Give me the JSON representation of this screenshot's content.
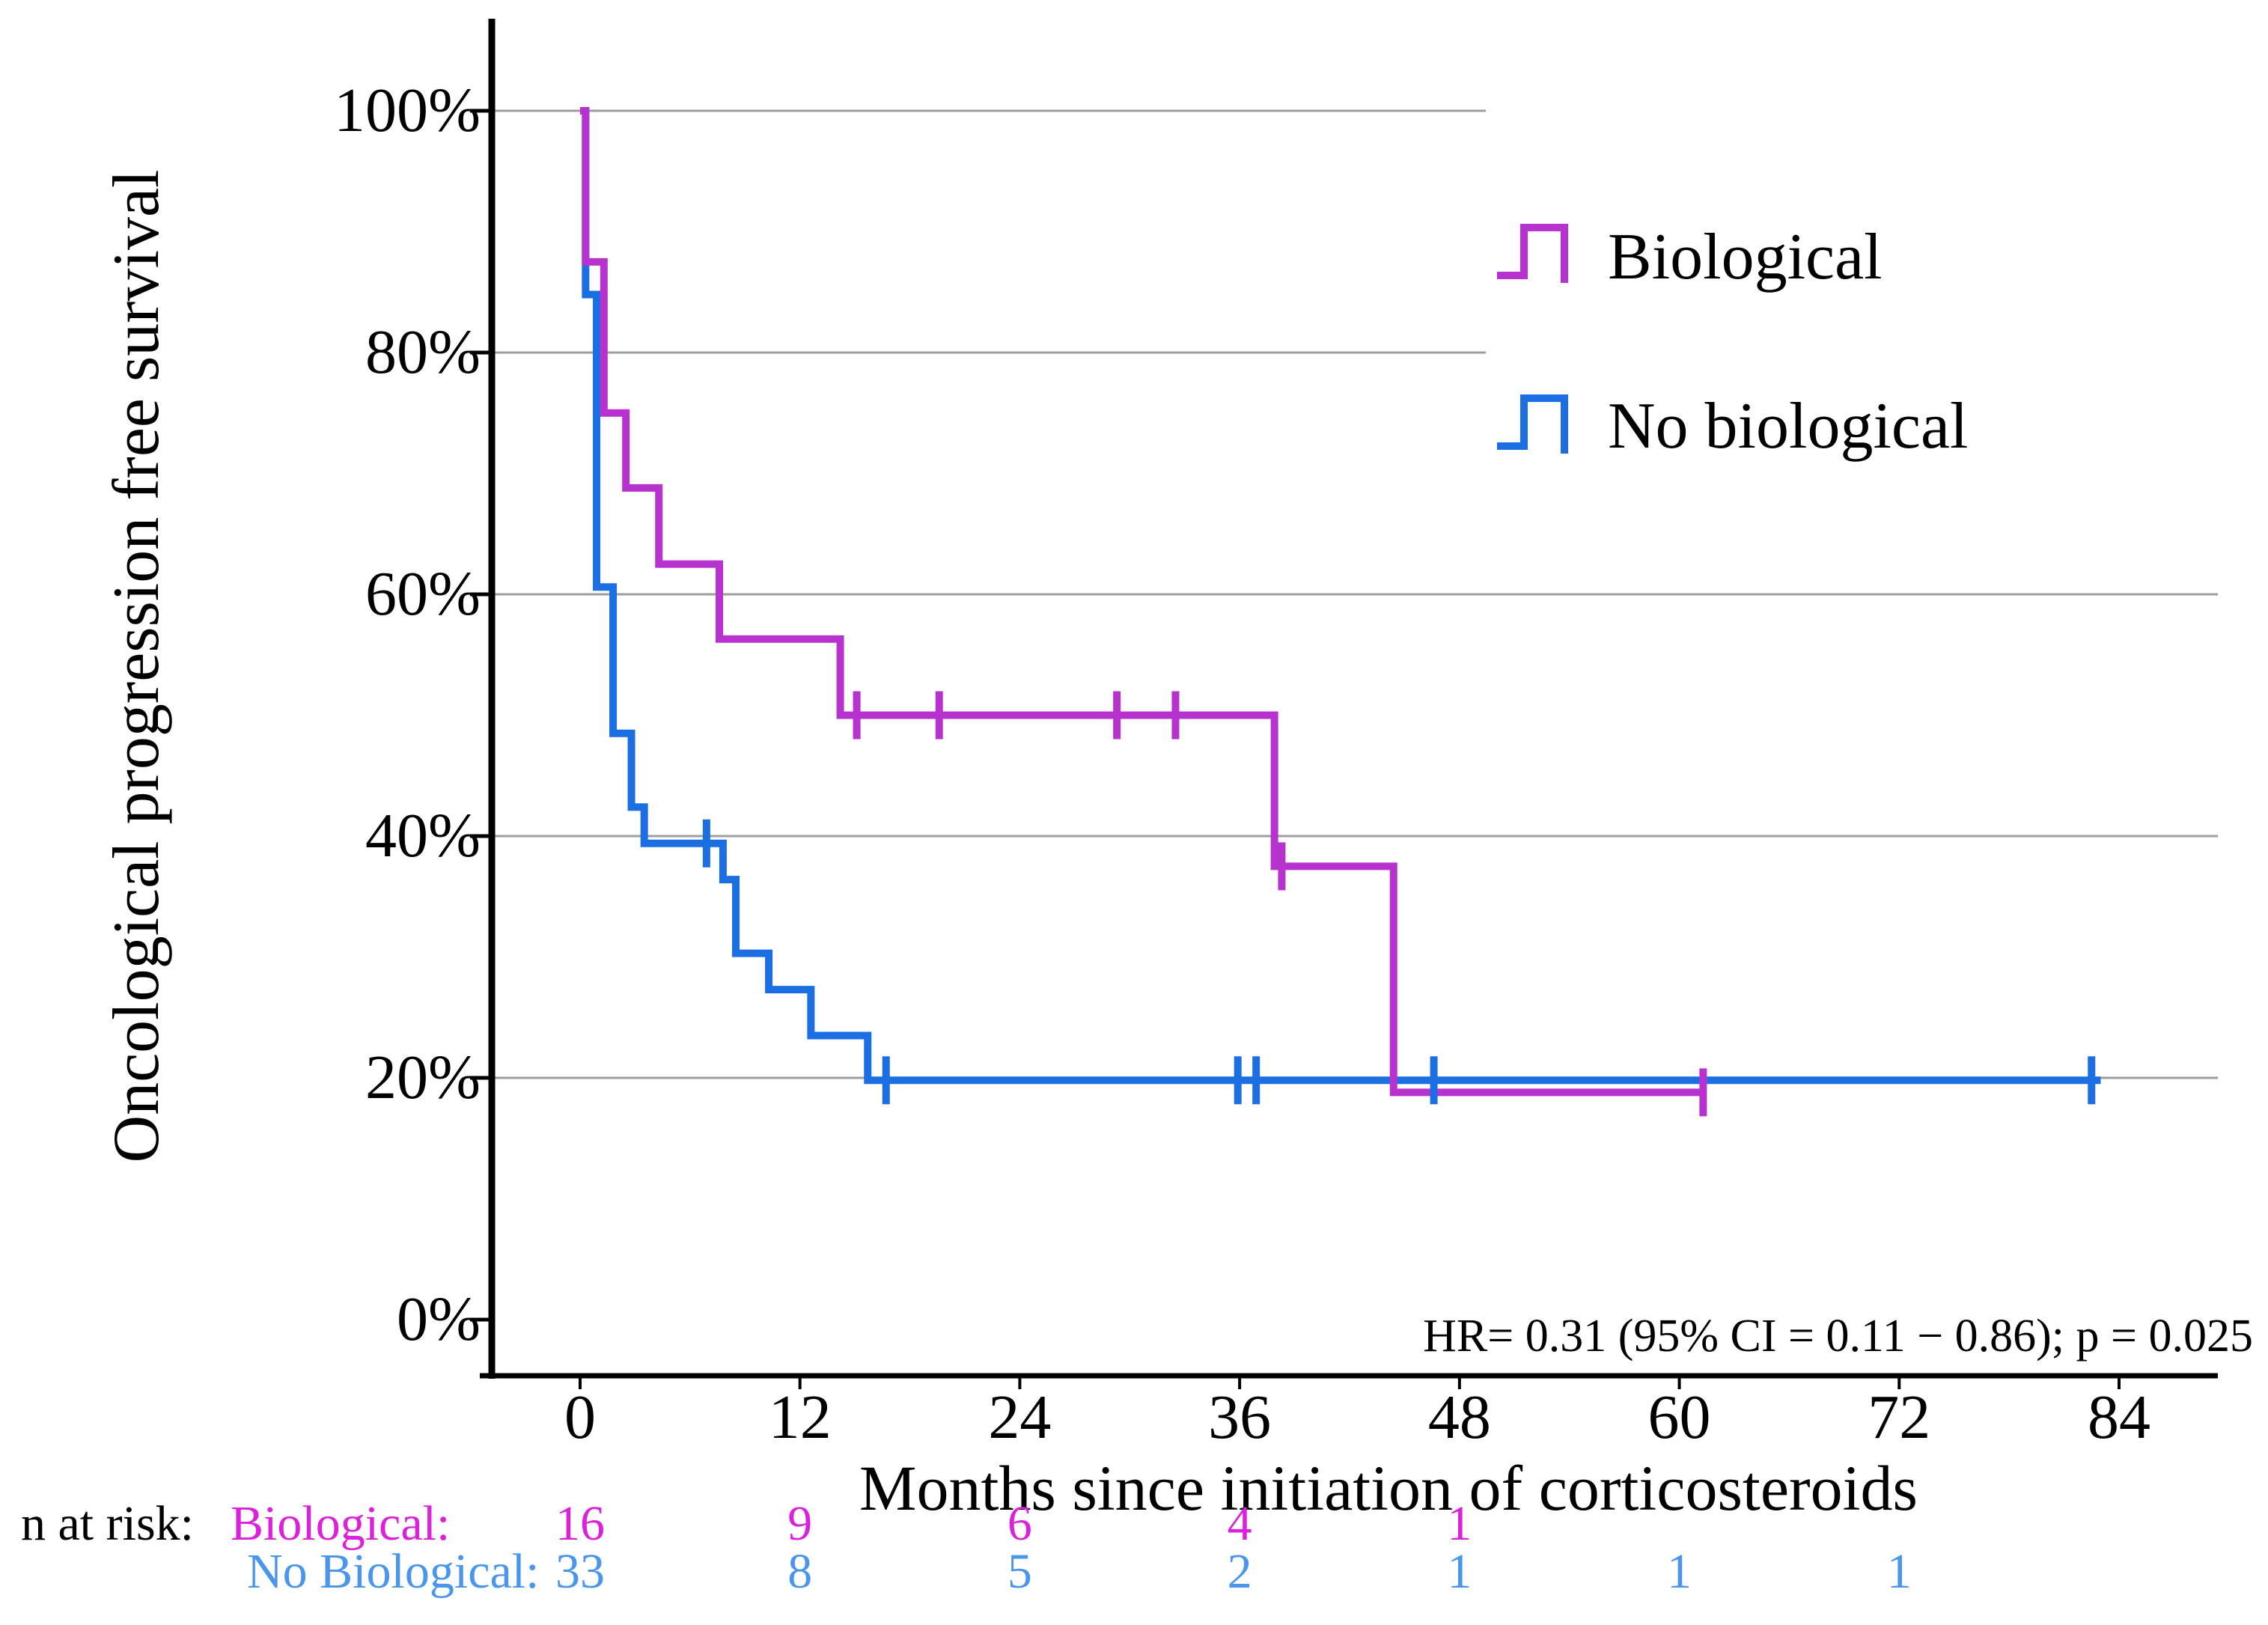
{
  "figure": {
    "y_axis": {
      "title": "Oncological progression free survival",
      "tick_labels": [
        "100%",
        "80%",
        "60%",
        "40%",
        "20%",
        "0%"
      ],
      "tick_values": [
        100,
        80,
        60,
        40,
        20,
        0
      ]
    },
    "x_axis": {
      "title": "Months since initiation of corticosteroids",
      "tick_labels": [
        "0",
        "12",
        "24",
        "36",
        "48",
        "60",
        "72",
        "84"
      ],
      "tick_values": [
        0,
        12,
        24,
        36,
        48,
        60,
        72,
        84
      ]
    },
    "legend": [
      {
        "label": "Biological",
        "color": "#B732CE"
      },
      {
        "label": "No biological",
        "color": "#1B6FE3"
      }
    ],
    "annotation": "HR= 0.31 (95% CI = 0.11 − 0.86); p = 0.025",
    "grid_color": "#9E9E9E",
    "axis_color": "#000000"
  },
  "chart_data": {
    "type": "line",
    "subtype": "kaplan-meier-step",
    "title": "",
    "xlabel": "Months since initiation of corticosteroids",
    "ylabel": "Oncological progression free survival",
    "xlim": [
      0,
      84
    ],
    "ylim": [
      0,
      100
    ],
    "grid": true,
    "legend_position": "upper right",
    "series": [
      {
        "name": "No biological",
        "color": "#1B6FE3",
        "steps": [
          [
            0,
            100
          ],
          [
            0.3,
            84.8
          ],
          [
            0.9,
            60.6
          ],
          [
            1.8,
            48.5
          ],
          [
            2.8,
            42.4
          ],
          [
            3.5,
            39.4
          ],
          [
            7.8,
            36.4
          ],
          [
            8.5,
            30.3
          ],
          [
            10.3,
            27.3
          ],
          [
            12.6,
            23.5
          ],
          [
            15.7,
            19.8
          ],
          [
            83,
            19.8
          ]
        ],
        "censors": [
          [
            6.9,
            39.4
          ],
          [
            16.7,
            19.8
          ],
          [
            35.9,
            19.8
          ],
          [
            36.9,
            19.8
          ],
          [
            46.6,
            19.8
          ],
          [
            82.5,
            19.8
          ]
        ]
      },
      {
        "name": "Biological",
        "color": "#B732CE",
        "steps": [
          [
            0,
            100
          ],
          [
            0.3,
            87.5
          ],
          [
            1.3,
            75
          ],
          [
            2.5,
            68.8
          ],
          [
            4.3,
            62.5
          ],
          [
            7.6,
            56.3
          ],
          [
            14.2,
            50
          ],
          [
            37.9,
            37.5
          ],
          [
            44.4,
            18.8
          ],
          [
            61.3,
            18.8
          ]
        ],
        "censors": [
          [
            15.1,
            50
          ],
          [
            19.6,
            50
          ],
          [
            29.3,
            50
          ],
          [
            32.5,
            50
          ],
          [
            38.3,
            37.5
          ],
          [
            61.3,
            18.8
          ]
        ]
      }
    ]
  },
  "risk_table": {
    "prefix": "n at risk:",
    "rows": [
      {
        "label": "Biological:",
        "color": "#DB21DB",
        "months": [
          0,
          12,
          24,
          36,
          48
        ],
        "values": [
          "16",
          "9",
          "6",
          "4",
          "1"
        ]
      },
      {
        "label": "No Biological:",
        "color": "#4A96EC",
        "months": [
          0,
          12,
          24,
          36,
          48,
          60,
          72
        ],
        "values": [
          "33",
          "8",
          "5",
          "2",
          "1",
          "1",
          "1"
        ]
      }
    ]
  }
}
